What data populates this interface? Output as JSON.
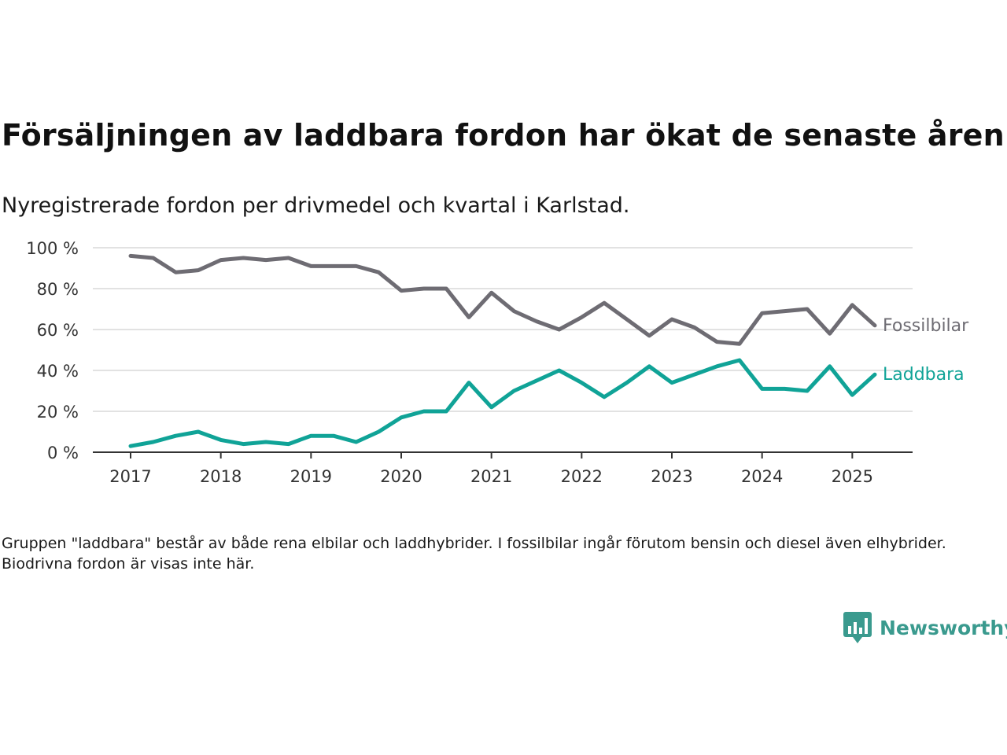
{
  "title": "Försäljningen av laddbara fordon har ökat de senaste åren",
  "subtitle": "Nyregistrerade fordon per drivmedel och kvartal i Karlstad.",
  "note": "Gruppen \"laddbara\" består av både rena elbilar och laddhybrider. I fossilbilar ingår förutom bensin och diesel även elhybrider. Biodrivna fordon är visas inte här.",
  "brand": {
    "name": "Newsworthy",
    "icon": "newsworthy-logo-icon",
    "color": "#3a9a8e"
  },
  "chart_data": {
    "type": "line",
    "x_unit": "quarter",
    "x": [
      "2017 Q1",
      "2017 Q2",
      "2017 Q3",
      "2017 Q4",
      "2018 Q1",
      "2018 Q2",
      "2018 Q3",
      "2018 Q4",
      "2019 Q1",
      "2019 Q2",
      "2019 Q3",
      "2019 Q4",
      "2020 Q1",
      "2020 Q2",
      "2020 Q3",
      "2020 Q4",
      "2021 Q1",
      "2021 Q2",
      "2021 Q3",
      "2021 Q4",
      "2022 Q1",
      "2022 Q2",
      "2022 Q3",
      "2022 Q4",
      "2023 Q1",
      "2023 Q2",
      "2023 Q3",
      "2023 Q4",
      "2024 Q1",
      "2024 Q2",
      "2024 Q3",
      "2024 Q4",
      "2025 Q1",
      "2025 Q2"
    ],
    "x_tick_labels": [
      "2017",
      "2018",
      "2019",
      "2020",
      "2021",
      "2022",
      "2023",
      "2024",
      "2025"
    ],
    "y_tick_labels": [
      "0 %",
      "20 %",
      "40 %",
      "60 %",
      "80 %",
      "100 %"
    ],
    "y_ticks": [
      0,
      20,
      40,
      60,
      80,
      100
    ],
    "ylim": [
      0,
      100
    ],
    "y_unit": "%",
    "grid": "horizontal",
    "legend": "inline-right",
    "series": [
      {
        "name": "Fossilbilar",
        "color": "#6e6c73",
        "values": [
          96,
          95,
          88,
          89,
          94,
          95,
          94,
          95,
          91,
          91,
          91,
          88,
          79,
          80,
          80,
          66,
          78,
          69,
          64,
          60,
          66,
          73,
          65,
          57,
          65,
          61,
          54,
          53,
          68,
          69,
          70,
          58,
          72,
          62
        ]
      },
      {
        "name": "Laddbara",
        "color": "#10a397",
        "values": [
          3,
          5,
          8,
          10,
          6,
          4,
          5,
          4,
          8,
          8,
          5,
          10,
          17,
          20,
          20,
          34,
          22,
          30,
          35,
          40,
          34,
          27,
          34,
          42,
          34,
          38,
          42,
          45,
          31,
          31,
          30,
          42,
          28,
          38
        ]
      }
    ]
  }
}
